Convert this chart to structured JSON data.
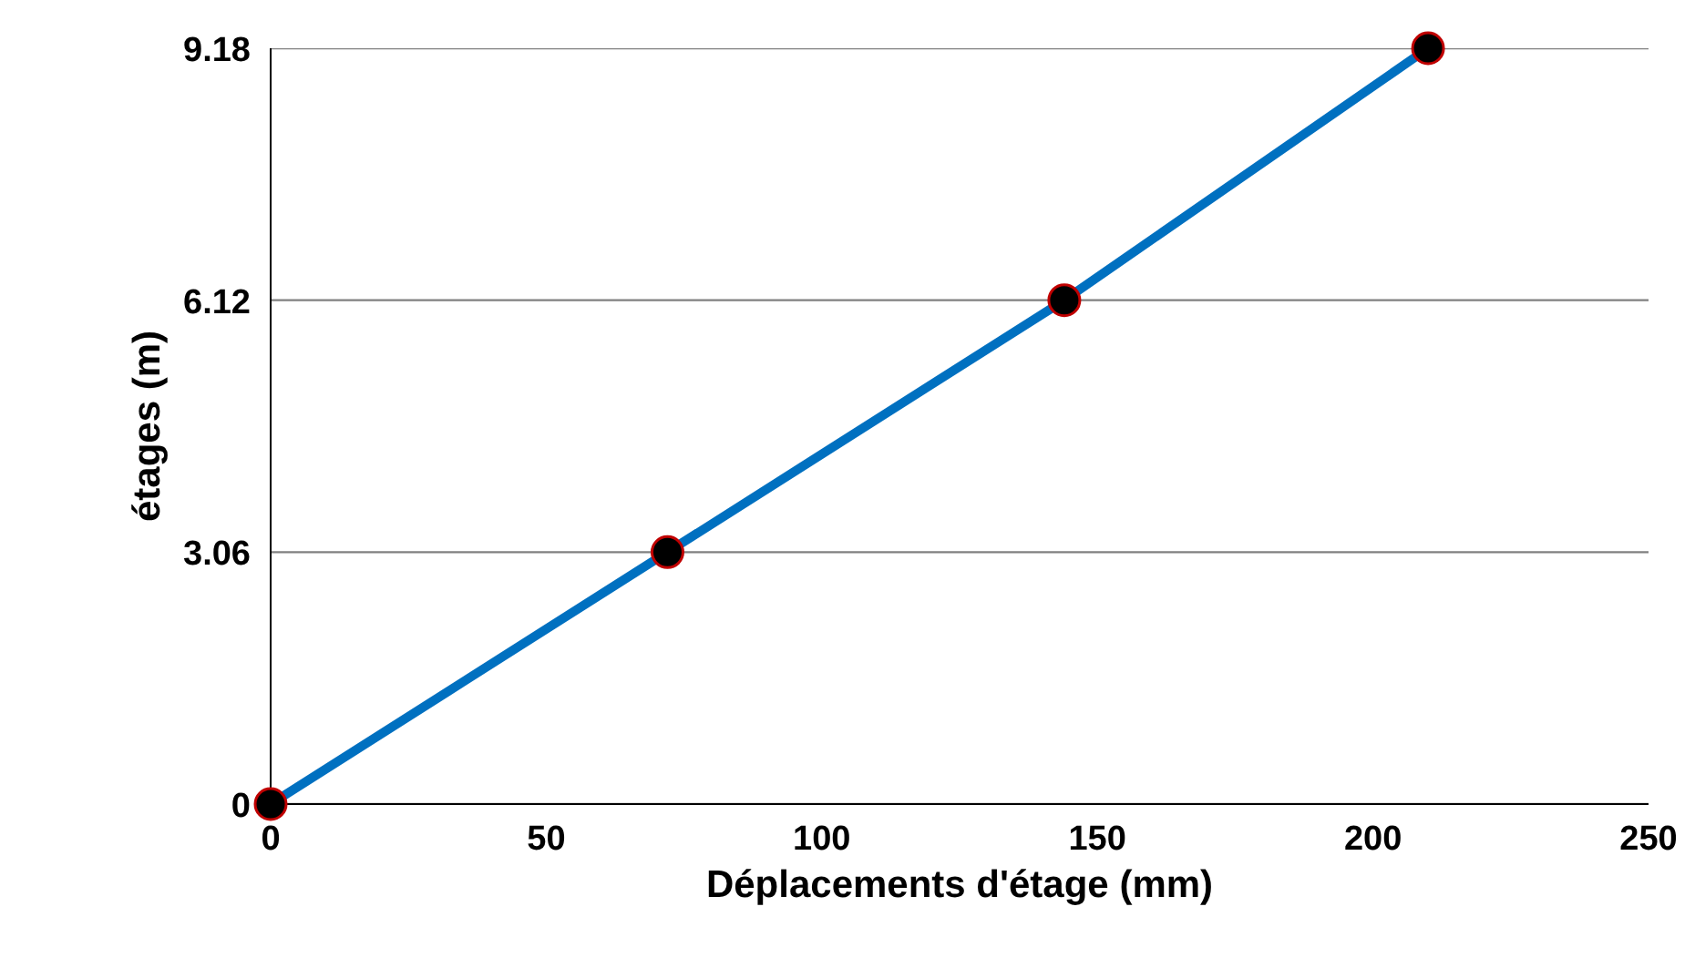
{
  "chart_data": {
    "type": "line",
    "xlabel": "Déplacements d'étage (mm)",
    "ylabel": "étages (m)",
    "x": [
      0,
      72,
      144,
      210
    ],
    "series": [
      {
        "color": "#0070c0",
        "values": [
          0,
          3.06,
          6.12,
          9.18
        ]
      }
    ],
    "xlim": [
      0,
      250
    ],
    "xticks": [
      0,
      50,
      100,
      150,
      200,
      250
    ],
    "ylim": [
      0,
      9.18
    ],
    "yticks": [
      0,
      3.06,
      6.12,
      9.18
    ],
    "grid": "y",
    "marker": "circle",
    "line_style": "solid"
  }
}
